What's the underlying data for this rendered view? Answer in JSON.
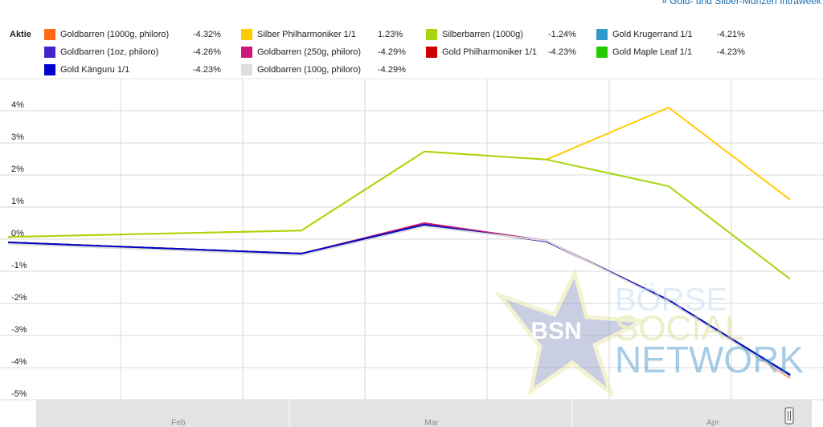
{
  "link": "» Gold- und Silber-Münzen Intraweek",
  "watermark": {
    "badge": "BSN",
    "line1": "BÖRSE",
    "line2": "SOCIAL",
    "line3": "NETWORK"
  },
  "chart_data": {
    "type": "line",
    "legend_title": "Aktie",
    "categories": [
      null,
      null,
      null,
      null,
      null,
      null
    ],
    "x_axis_labels": [
      "Feb",
      "Mar",
      "Apr"
    ],
    "ylim": [
      -5,
      5
    ],
    "yticks": [
      {
        "value": -5,
        "label": "-5%"
      },
      {
        "value": -4,
        "label": "-4%"
      },
      {
        "value": -3,
        "label": "-3%"
      },
      {
        "value": -2,
        "label": "-2%"
      },
      {
        "value": -1,
        "label": "-1%"
      },
      {
        "value": 0,
        "label": "0%"
      },
      {
        "value": 1,
        "label": "1%"
      },
      {
        "value": 2,
        "label": "2%"
      },
      {
        "value": 3,
        "label": "3%"
      },
      {
        "value": 4,
        "label": "4%"
      }
    ],
    "grid": true,
    "series": [
      {
        "name": "Goldbarren (1000g, philoro)",
        "change_label": "-4.32%",
        "color": "#ff6a13",
        "values": [
          -0.1,
          -0.45,
          0.45,
          -0.07,
          -1.9,
          -4.32
        ]
      },
      {
        "name": "Silber Philharmoniker 1/1",
        "change_label": "1.23%",
        "color": "#ffcc00",
        "values": [
          0.07,
          0.27,
          2.73,
          2.48,
          4.1,
          1.23
        ]
      },
      {
        "name": "Silberbarren (1000g)",
        "change_label": "-1.24%",
        "color": "#a6d60f",
        "values": [
          0.07,
          0.27,
          2.73,
          2.48,
          1.65,
          -1.24
        ]
      },
      {
        "name": "Gold Krugerrand 1/1",
        "change_label": "-4.21%",
        "color": "#3399cc",
        "values": [
          -0.1,
          -0.45,
          0.45,
          -0.07,
          -1.9,
          -4.21
        ]
      },
      {
        "name": "Goldbarren (1oz, philoro)",
        "change_label": "-4.26%",
        "color": "#4422cc",
        "values": [
          -0.1,
          -0.45,
          0.45,
          -0.07,
          -1.9,
          -4.26
        ]
      },
      {
        "name": "Goldbarren (250g, philoro)",
        "change_label": "-4.29%",
        "color": "#cc1a7a",
        "values": [
          -0.1,
          -0.45,
          0.5,
          -0.05,
          -1.9,
          -4.29
        ]
      },
      {
        "name": "Gold Philharmoniker 1/1",
        "change_label": "-4.23%",
        "color": "#cc0000",
        "values": [
          -0.1,
          -0.45,
          0.45,
          -0.07,
          -1.9,
          -4.23
        ]
      },
      {
        "name": "Gold Maple Leaf 1/1",
        "change_label": "-4.23%",
        "color": "#22cc00",
        "values": [
          -0.1,
          -0.45,
          0.45,
          -0.07,
          -1.9,
          -4.23
        ]
      },
      {
        "name": "Gold Känguru 1/1",
        "change_label": "-4.23%",
        "color": "#0000cc",
        "values": [
          -0.1,
          -0.45,
          0.45,
          -0.07,
          -1.9,
          -4.23
        ]
      },
      {
        "name": "Goldbarren (100g, philoro)",
        "change_label": "-4.29%",
        "color": "#dddddd",
        "values": [
          -0.15,
          -0.5,
          0.4,
          -0.05,
          -1.95,
          -4.29
        ]
      }
    ]
  }
}
